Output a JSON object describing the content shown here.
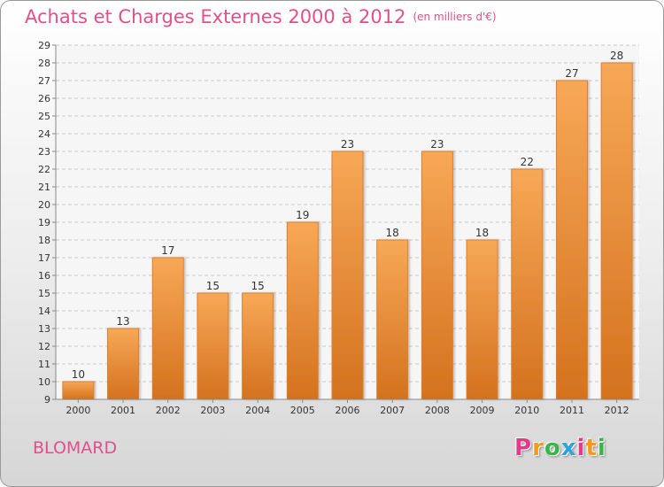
{
  "header": {
    "title": "Achats et Charges Externes 2000 à 2012",
    "subtitle": "(en milliers d'€)"
  },
  "footer": {
    "commune": "BLOMARD",
    "logo_text": [
      "P",
      "r",
      "o",
      "x",
      "i",
      "t",
      "i"
    ],
    "logo_colors": [
      "#e23b8b",
      "#f19a1f",
      "#3bb54a",
      "#2fa1dc",
      "#e23b8b",
      "#f19a1f",
      "#3bb54a"
    ]
  },
  "chart_data": {
    "type": "bar",
    "title": "Achats et Charges Externes 2000 à 2012",
    "subtitle": "(en milliers d'€)",
    "categories": [
      "2000",
      "2001",
      "2002",
      "2003",
      "2004",
      "2005",
      "2006",
      "2007",
      "2008",
      "2009",
      "2010",
      "2011",
      "2012"
    ],
    "values": [
      10,
      13,
      17,
      15,
      15,
      19,
      23,
      18,
      23,
      18,
      22,
      27,
      28
    ],
    "ylim": [
      9,
      29
    ],
    "yticks": [
      9,
      10,
      11,
      12,
      13,
      14,
      15,
      16,
      17,
      18,
      19,
      20,
      21,
      22,
      23,
      24,
      25,
      26,
      27,
      28,
      29
    ],
    "grid": true,
    "bar_color": "#f08a2c",
    "xlabel": "",
    "ylabel": ""
  }
}
